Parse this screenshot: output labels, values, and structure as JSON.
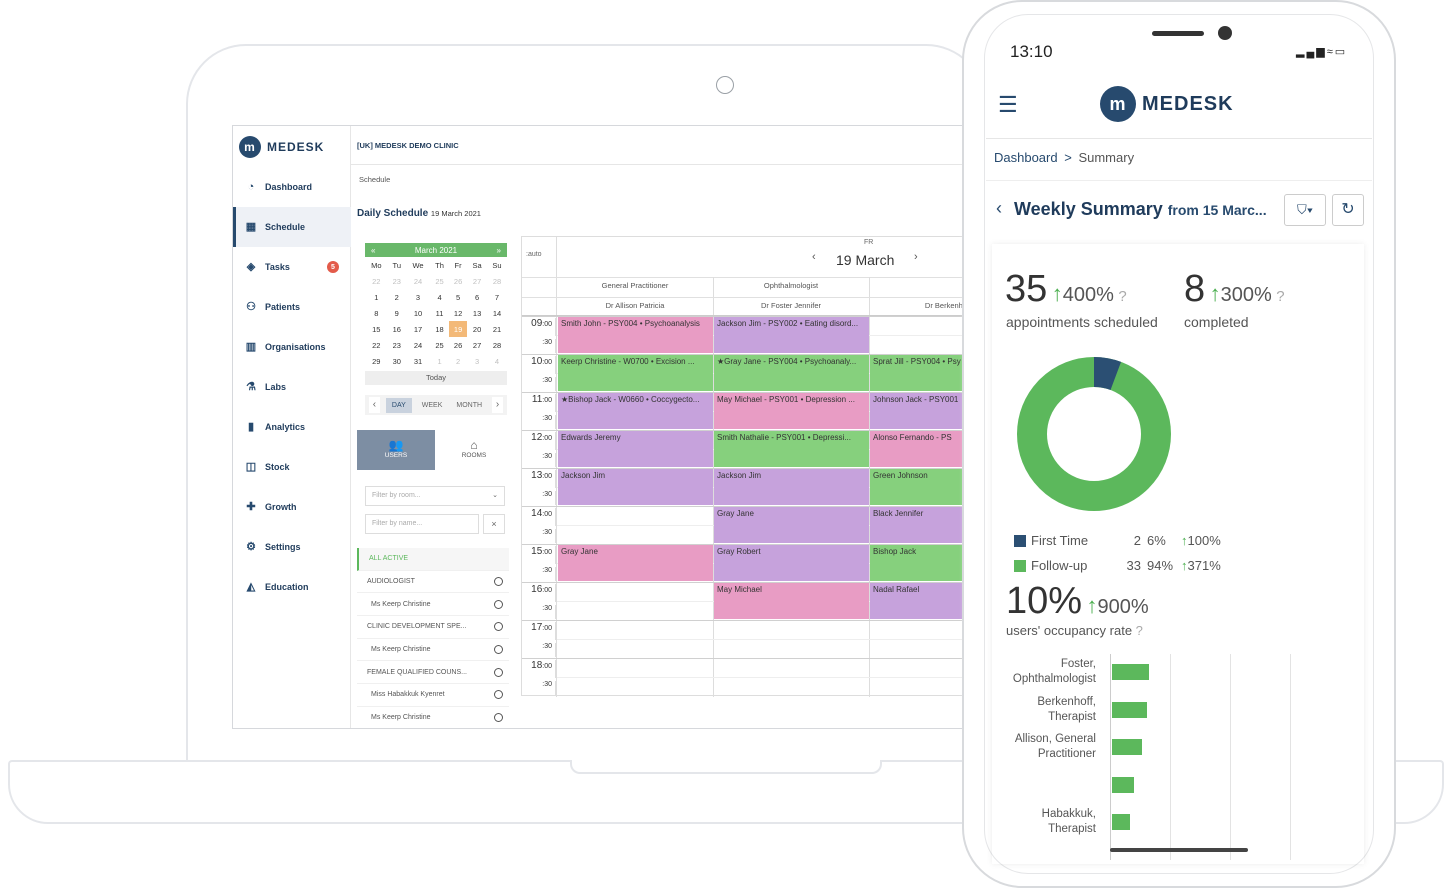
{
  "app": {
    "name": "MEDESK",
    "clinic": "[UK] MEDESK DEMO CLINIC"
  },
  "sidebar": {
    "items": [
      {
        "label": "Dashboard",
        "icon": "gauge-icon"
      },
      {
        "label": "Schedule",
        "icon": "calendar-icon",
        "active": true
      },
      {
        "label": "Tasks",
        "icon": "layers-icon",
        "badge": "5"
      },
      {
        "label": "Patients",
        "icon": "users-icon"
      },
      {
        "label": "Organisations",
        "icon": "building-icon"
      },
      {
        "label": "Labs",
        "icon": "flask-icon"
      },
      {
        "label": "Analytics",
        "icon": "bar-chart-icon"
      },
      {
        "label": "Stock",
        "icon": "box-icon"
      },
      {
        "label": "Growth",
        "icon": "puzzle-icon"
      },
      {
        "label": "Settings",
        "icon": "gear-icon"
      },
      {
        "label": "Education",
        "icon": "graduation-icon"
      }
    ]
  },
  "breadcrumb": "Schedule",
  "page": {
    "title": "Daily Schedule",
    "date": "19 March 2021"
  },
  "mini_calendar": {
    "month": "March 2021",
    "prev": "«",
    "next": "»",
    "weekdays": [
      "Mo",
      "Tu",
      "We",
      "Th",
      "Fr",
      "Sa",
      "Su"
    ],
    "weeks": [
      [
        "22",
        "23",
        "24",
        "25",
        "26",
        "27",
        "28"
      ],
      [
        "1",
        "2",
        "3",
        "4",
        "5",
        "6",
        "7"
      ],
      [
        "8",
        "9",
        "10",
        "11",
        "12",
        "13",
        "14"
      ],
      [
        "15",
        "16",
        "17",
        "18",
        "19",
        "20",
        "21"
      ],
      [
        "22",
        "23",
        "24",
        "25",
        "26",
        "27",
        "28"
      ],
      [
        "29",
        "30",
        "31",
        "1",
        "2",
        "3",
        "4"
      ]
    ],
    "today_label": "Today",
    "views": [
      "DAY",
      "WEEK",
      "MONTH"
    ]
  },
  "toggle": {
    "users": "USERS",
    "rooms": "ROOMS"
  },
  "filters": {
    "room_placeholder": "Filter by room...",
    "name_placeholder": "Filter by name..."
  },
  "staff_list": [
    "ALL ACTIVE",
    "AUDIOLOGIST",
    "Ms Keerp Christine",
    "CLINIC DEVELOPMENT SPE...",
    "Ms Keerp Christine",
    "FEMALE QUALIFIED COUNS...",
    "Miss Habakkuk Kyenret",
    "Ms Keerp Christine"
  ],
  "grid": {
    "auto_label": ":auto",
    "day_abbr": "FR",
    "date": "19 March",
    "columns": [
      {
        "specialty": "General Practitioner",
        "doctor": "Dr Allison Patricia"
      },
      {
        "specialty": "Ophthalmologist",
        "doctor": "Dr Foster Jennifer"
      },
      {
        "specialty": "",
        "doctor": "Dr Berkenhof"
      }
    ],
    "hours": [
      "09",
      "10",
      "11",
      "12",
      "13",
      "14",
      "15",
      "16",
      "17",
      "18"
    ],
    "minutes": ":00",
    "half": ":30",
    "appointments": [
      {
        "col": 0,
        "row": 0,
        "span": 2,
        "color": "pink",
        "text": "Smith John - PSY004 • Psychoanalysis"
      },
      {
        "col": 1,
        "row": 0,
        "span": 2,
        "color": "purple",
        "text": "Jackson Jim - PSY002 • Eating disord..."
      },
      {
        "col": 0,
        "row": 2,
        "span": 2,
        "color": "green",
        "text": "Keerp Christine - W0700 • Excision ..."
      },
      {
        "col": 1,
        "row": 2,
        "span": 2,
        "color": "green",
        "text": "★Gray Jane - PSY004 • Psychoanaly..."
      },
      {
        "col": 2,
        "row": 2,
        "span": 2,
        "color": "green",
        "text": "Sprat Jill - PSY004 • Psy"
      },
      {
        "col": 0,
        "row": 4,
        "span": 2,
        "color": "purple",
        "text": "★Bishop Jack - W0660 • Coccygecto..."
      },
      {
        "col": 1,
        "row": 4,
        "span": 2,
        "color": "pink",
        "text": "May Michael - PSY001 • Depression ..."
      },
      {
        "col": 2,
        "row": 4,
        "span": 2,
        "color": "purple",
        "text": "Johnson Jack - PSY001"
      },
      {
        "col": 0,
        "row": 6,
        "span": 2,
        "color": "purple",
        "text": "Edwards Jeremy"
      },
      {
        "col": 1,
        "row": 6,
        "span": 2,
        "color": "green",
        "text": "Smith Nathalie - PSY001 • Depressi..."
      },
      {
        "col": 2,
        "row": 6,
        "span": 2,
        "color": "pink",
        "text": "Alonso Fernando - PS"
      },
      {
        "col": 0,
        "row": 8,
        "span": 2,
        "color": "purple",
        "text": "Jackson Jim"
      },
      {
        "col": 1,
        "row": 8,
        "span": 2,
        "color": "purple",
        "text": "Jackson Jim"
      },
      {
        "col": 2,
        "row": 8,
        "span": 2,
        "color": "green",
        "text": "Green Johnson"
      },
      {
        "col": 1,
        "row": 10,
        "span": 2,
        "color": "purple",
        "text": "Gray Jane"
      },
      {
        "col": 2,
        "row": 10,
        "span": 2,
        "color": "purple",
        "text": "Black Jennifer"
      },
      {
        "col": 0,
        "row": 12,
        "span": 2,
        "color": "pink",
        "text": "Gray Jane"
      },
      {
        "col": 1,
        "row": 12,
        "span": 2,
        "color": "purple",
        "text": "Gray Robert"
      },
      {
        "col": 2,
        "row": 12,
        "span": 2,
        "color": "green",
        "text": "Bishop Jack"
      },
      {
        "col": 1,
        "row": 14,
        "span": 2,
        "color": "pink",
        "text": "May Michael"
      },
      {
        "col": 2,
        "row": 14,
        "span": 2,
        "color": "purple",
        "text": "Nadal Rafael"
      }
    ]
  },
  "colors": {
    "pink": "#e89cc4",
    "purple": "#c6a2dc",
    "green": "#86d07d",
    "brand": "#274a6e",
    "accent": "#4caf50"
  },
  "phone": {
    "time": "13:10",
    "breadcrumb": {
      "root": "Dashboard",
      "sep": ">",
      "current": "Summary"
    },
    "title": "Weekly Summary",
    "subtitle": "from 15 Marc...",
    "kpi1": {
      "value": "35",
      "change": "400%",
      "label": "appointments scheduled"
    },
    "kpi2": {
      "value": "8",
      "change": "300%",
      "label": "completed"
    },
    "donut": {
      "first_time": 2,
      "follow_up": 33
    },
    "legend": [
      {
        "label": "First Time",
        "count": "2",
        "pct": "6%",
        "change": "100%",
        "color": "#2b4f73"
      },
      {
        "label": "Follow-up",
        "count": "33",
        "pct": "94%",
        "change": "371%",
        "color": "#5cb85c"
      }
    ],
    "occupancy": {
      "value": "10%",
      "change": "900%",
      "label": "users' occupancy rate"
    },
    "bars": [
      {
        "name1": "Foster,",
        "name2": "Ophthalmologist",
        "value": 37
      },
      {
        "name1": "Berkenhoff,",
        "name2": "Therapist",
        "value": 35
      },
      {
        "name1": "Allison, General",
        "name2": "Practitioner",
        "value": 30
      },
      {
        "name1": "",
        "name2": "",
        "value": 22
      },
      {
        "name1": "Habakkuk,",
        "name2": "Therapist",
        "value": 18
      }
    ]
  }
}
